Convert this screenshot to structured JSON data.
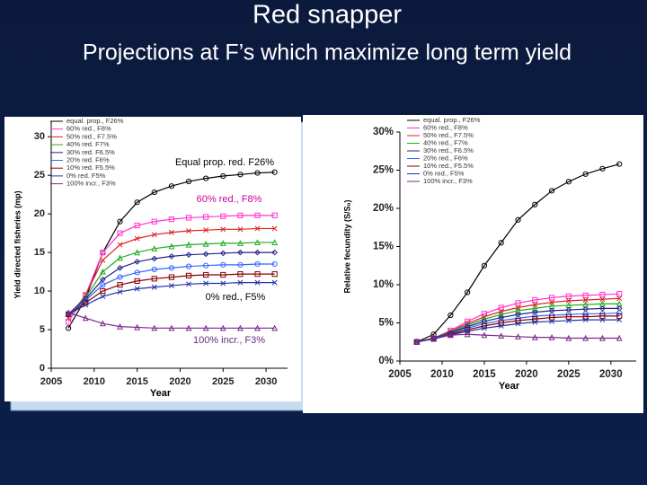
{
  "slide": {
    "title": "Red snapper",
    "subtitle": "Projections at F’s which maximize long term yield"
  },
  "chart_data": [
    {
      "type": "line",
      "x_label": "Year",
      "y_label": "Yield directed fisheries (mp)",
      "x": [
        2007,
        2009,
        2011,
        2013,
        2015,
        2017,
        2019,
        2021,
        2023,
        2025,
        2027,
        2029,
        2031
      ],
      "xlim": [
        2005,
        2032.5
      ],
      "xticks": [
        2005,
        2010,
        2015,
        2020,
        2025,
        2030
      ],
      "ylim": [
        0,
        32
      ],
      "yticks": [
        0,
        5,
        10,
        15,
        20,
        25,
        30
      ],
      "annotations": [
        "Equal prop.  red.  F26%",
        "60% red., F8%",
        "0% red., F5%",
        "100% incr., F3%"
      ],
      "series": [
        {
          "name": "equal. prop., F26%",
          "color": "#000000",
          "values": [
            5.2,
            9,
            15,
            19,
            21.5,
            22.8,
            23.6,
            24.2,
            24.6,
            24.9,
            25.1,
            25.3,
            25.4
          ]
        },
        {
          "name": "60% red., F8%",
          "color": "#ff33cc",
          "values": [
            6,
            9.5,
            15,
            17.5,
            18.5,
            19,
            19.3,
            19.5,
            19.6,
            19.7,
            19.8,
            19.8,
            19.8
          ]
        },
        {
          "name": "50% red., F7.5%",
          "color": "#dd2222",
          "values": [
            6.5,
            9.5,
            14,
            16,
            16.8,
            17.3,
            17.6,
            17.8,
            17.9,
            18,
            18,
            18.1,
            18.1
          ]
        },
        {
          "name": "40% red. F7%",
          "color": "#22aa22",
          "values": [
            7,
            9.2,
            12.5,
            14.3,
            15,
            15.5,
            15.8,
            16,
            16.1,
            16.2,
            16.2,
            16.3,
            16.3
          ]
        },
        {
          "name": "30% red. F6.5%",
          "color": "#222288",
          "values": [
            7,
            9,
            11.5,
            13,
            13.8,
            14.2,
            14.5,
            14.7,
            14.8,
            14.9,
            15,
            15,
            15
          ]
        },
        {
          "name": "20% red. F6%",
          "color": "#3366ff",
          "values": [
            7,
            8.8,
            10.8,
            11.8,
            12.4,
            12.8,
            13,
            13.2,
            13.3,
            13.4,
            13.4,
            13.5,
            13.5
          ]
        },
        {
          "name": "10% red. F5.5%",
          "color": "#880000",
          "values": [
            7,
            8.5,
            10,
            10.8,
            11.3,
            11.6,
            11.8,
            12,
            12.1,
            12.1,
            12.2,
            12.2,
            12.2
          ]
        },
        {
          "name": "0% red. F5%",
          "color": "#2233aa",
          "values": [
            7,
            8.2,
            9.3,
            9.9,
            10.3,
            10.5,
            10.7,
            10.9,
            11,
            11,
            11.1,
            11.1,
            11.1
          ]
        },
        {
          "name": "100% incr., F3%",
          "color": "#7a2a8a",
          "values": [
            7.2,
            6.5,
            5.8,
            5.4,
            5.3,
            5.2,
            5.2,
            5.2,
            5.2,
            5.2,
            5.2,
            5.2,
            5.2
          ]
        }
      ]
    },
    {
      "type": "line",
      "x_label": "Year",
      "y_label": "Relative fecundity (S/S₀)",
      "x": [
        2007,
        2009,
        2011,
        2013,
        2015,
        2017,
        2019,
        2021,
        2023,
        2025,
        2027,
        2029,
        2031
      ],
      "xlim": [
        2005,
        2033
      ],
      "xticks": [
        2005,
        2010,
        2015,
        2020,
        2025,
        2030
      ],
      "ylim": [
        0,
        30
      ],
      "yticks": [
        {
          "value": 0,
          "label": "0%"
        },
        {
          "value": 5,
          "label": "5%"
        },
        {
          "value": 10,
          "label": "10%"
        },
        {
          "value": 15,
          "label": "15%"
        },
        {
          "value": 20,
          "label": "20%"
        },
        {
          "value": 25,
          "label": "25%"
        },
        {
          "value": 30,
          "label": "30%"
        }
      ],
      "series": [
        {
          "name": "equal. prop., F26%",
          "color": "#000000",
          "values": [
            2.5,
            3.5,
            6,
            9,
            12.5,
            15.5,
            18.5,
            20.5,
            22.3,
            23.5,
            24.5,
            25.2,
            25.8
          ]
        },
        {
          "name": "60% red., F8%",
          "color": "#ff33cc",
          "values": [
            2.5,
            3,
            4,
            5.2,
            6.2,
            7,
            7.6,
            8,
            8.3,
            8.5,
            8.6,
            8.7,
            8.8
          ]
        },
        {
          "name": "50% red., F7.5%",
          "color": "#dd2222",
          "values": [
            2.5,
            3,
            3.9,
            4.9,
            5.8,
            6.5,
            7,
            7.4,
            7.7,
            7.9,
            8,
            8.1,
            8.2
          ]
        },
        {
          "name": "40% red., F7%",
          "color": "#22aa22",
          "values": [
            2.5,
            3,
            3.8,
            4.7,
            5.5,
            6.1,
            6.6,
            6.9,
            7.2,
            7.3,
            7.4,
            7.5,
            7.5
          ]
        },
        {
          "name": "30% red., F6.5%",
          "color": "#222288",
          "values": [
            2.5,
            3,
            3.7,
            4.5,
            5.2,
            5.7,
            6.1,
            6.4,
            6.6,
            6.7,
            6.8,
            6.9,
            6.9
          ]
        },
        {
          "name": "20% red., F6%",
          "color": "#3366ff",
          "values": [
            2.5,
            2.9,
            3.6,
            4.3,
            4.9,
            5.3,
            5.6,
            5.9,
            6,
            6.1,
            6.2,
            6.2,
            6.3
          ]
        },
        {
          "name": "10% red., F5.5%",
          "color": "#880000",
          "values": [
            2.5,
            2.9,
            3.5,
            4.1,
            4.6,
            5,
            5.3,
            5.5,
            5.7,
            5.8,
            5.8,
            5.9,
            5.9
          ]
        },
        {
          "name": "0% red., F5%",
          "color": "#2233aa",
          "values": [
            2.5,
            2.9,
            3.4,
            3.9,
            4.3,
            4.6,
            4.9,
            5.1,
            5.2,
            5.3,
            5.4,
            5.4,
            5.4
          ]
        },
        {
          "name": "100% incr., F3%",
          "color": "#7a2a8a",
          "values": [
            2.5,
            3,
            3.4,
            3.5,
            3.4,
            3.3,
            3.2,
            3.1,
            3.1,
            3,
            3,
            3,
            3
          ]
        }
      ]
    }
  ]
}
